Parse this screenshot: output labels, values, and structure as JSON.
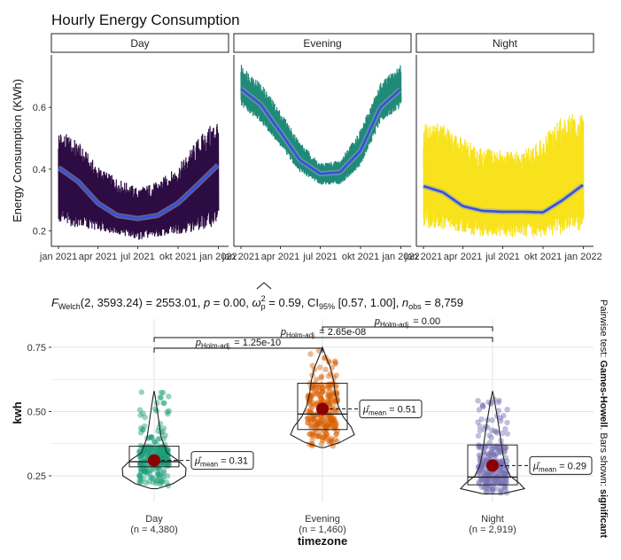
{
  "chart_data": [
    {
      "type": "line",
      "title": "Hourly Energy Consumption",
      "ylabel": "Energy Consumption (KWh)",
      "xlabel": "",
      "ylim": [
        0.15,
        0.77
      ],
      "yticks": [
        0.2,
        0.4,
        0.6
      ],
      "ytick_labels": [
        "0.2",
        "0.4",
        "0.6"
      ],
      "xlim": [
        "2021-01-01",
        "2022-01-08"
      ],
      "xticks": [
        "2021-01-01",
        "2021-04-01",
        "2021-07-01",
        "2021-10-01",
        "2022-01-01"
      ],
      "xtick_labels": [
        "jan 2021",
        "apr 2021",
        "jul 2021",
        "okt 2021",
        "jan 2022"
      ],
      "grid": false,
      "facets": [
        {
          "label": "Day",
          "color": "#2d0b43",
          "smooth_color": "#3152e0",
          "smooth": {
            "x": [
              "2021-01-01",
              "2021-02-15",
              "2021-04-01",
              "2021-05-15",
              "2021-07-01",
              "2021-08-15",
              "2021-10-01",
              "2021-11-15",
              "2022-01-01"
            ],
            "y": [
              0.405,
              0.36,
              0.29,
              0.25,
              0.24,
              0.25,
              0.29,
              0.35,
              0.415
            ]
          },
          "band_upper": {
            "x": [
              "2021-01-01",
              "2021-02-15",
              "2021-04-01",
              "2021-05-15",
              "2021-07-01",
              "2021-08-15",
              "2021-10-01",
              "2021-11-15",
              "2022-01-01"
            ],
            "y": [
              0.53,
              0.49,
              0.41,
              0.37,
              0.34,
              0.36,
              0.41,
              0.5,
              0.57
            ]
          },
          "band_lower": {
            "x": [
              "2021-01-01",
              "2021-02-15",
              "2021-04-01",
              "2021-05-15",
              "2021-07-01",
              "2021-08-15",
              "2021-10-01",
              "2021-11-15",
              "2022-01-01"
            ],
            "y": [
              0.22,
              0.21,
              0.2,
              0.19,
              0.17,
              0.18,
              0.19,
              0.2,
              0.22
            ]
          }
        },
        {
          "label": "Evening",
          "color": "#1f8a78",
          "smooth_color": "#3152e0",
          "smooth": {
            "x": [
              "2021-01-01",
              "2021-02-15",
              "2021-04-01",
              "2021-05-15",
              "2021-07-01",
              "2021-08-15",
              "2021-10-01",
              "2021-11-15",
              "2022-01-01"
            ],
            "y": [
              0.66,
              0.61,
              0.52,
              0.43,
              0.385,
              0.39,
              0.46,
              0.6,
              0.66
            ]
          },
          "band_upper": {
            "x": [
              "2021-01-01",
              "2021-02-15",
              "2021-04-01",
              "2021-05-15",
              "2021-07-01",
              "2021-08-15",
              "2021-10-01",
              "2021-11-15",
              "2022-01-01"
            ],
            "y": [
              0.74,
              0.68,
              0.59,
              0.49,
              0.42,
              0.43,
              0.53,
              0.68,
              0.74
            ]
          },
          "band_lower": {
            "x": [
              "2021-01-01",
              "2021-02-15",
              "2021-04-01",
              "2021-05-15",
              "2021-07-01",
              "2021-08-15",
              "2021-10-01",
              "2021-11-15",
              "2022-01-01"
            ],
            "y": [
              0.6,
              0.55,
              0.47,
              0.39,
              0.35,
              0.35,
              0.41,
              0.55,
              0.6
            ]
          }
        },
        {
          "label": "Night",
          "color": "#f7e21c",
          "smooth_color": "#3152e0",
          "smooth": {
            "x": [
              "2021-01-01",
              "2021-02-15",
              "2021-04-01",
              "2021-05-15",
              "2021-07-01",
              "2021-08-15",
              "2021-10-01",
              "2021-11-15",
              "2022-01-01"
            ],
            "y": [
              0.345,
              0.325,
              0.28,
              0.265,
              0.262,
              0.262,
              0.26,
              0.3,
              0.35
            ]
          },
          "band_upper": {
            "x": [
              "2021-01-01",
              "2021-02-15",
              "2021-04-01",
              "2021-05-15",
              "2021-07-01",
              "2021-08-15",
              "2021-10-01",
              "2021-11-15",
              "2022-01-01"
            ],
            "y": [
              0.55,
              0.55,
              0.5,
              0.47,
              0.46,
              0.46,
              0.5,
              0.58,
              0.58
            ]
          },
          "band_lower": {
            "x": [
              "2021-01-01",
              "2021-02-15",
              "2021-04-01",
              "2021-05-15",
              "2021-07-01",
              "2021-08-15",
              "2021-10-01",
              "2021-11-15",
              "2022-01-01"
            ],
            "y": [
              0.21,
              0.2,
              0.19,
              0.18,
              0.18,
              0.18,
              0.18,
              0.19,
              0.2
            ]
          }
        }
      ]
    },
    {
      "type": "violin",
      "subtitle_parts": {
        "stat": "F",
        "stat_sub": "Welch",
        "args": "(2, 3593.24) = 2553.01, ",
        "p_label": "p",
        "p_value": " = 0.00, ",
        "effect": "ω",
        "effect_sup": "2",
        "effect_sub": "p",
        "effect_value": " = 0.59, CI",
        "ci_sub": "95%",
        "ci_value": " [0.57, 1.00], ",
        "n_label": "n",
        "n_sub": "obs",
        "n_value": " = 8,759"
      },
      "xlabel": "timezone",
      "ylabel": "kwh",
      "ylim": [
        0.15,
        0.86
      ],
      "yticks": [
        0.25,
        0.5,
        0.75
      ],
      "ytick_labels": [
        "0.25",
        "0.50",
        "0.75"
      ],
      "caption": {
        "prefix": "Pairwise test: ",
        "test": "Games-Howell",
        "middle": ". Bars shown: ",
        "shown": "significant"
      },
      "groups": [
        {
          "label": "Day",
          "n_label": "(n = 4,380)",
          "mean": 0.31,
          "mean_label": "= 0.31",
          "q1": 0.285,
          "median": 0.305,
          "q3": 0.365,
          "min": 0.2,
          "max": 0.58,
          "color": "#1b9e77",
          "violin": {
            "y": [
              0.2,
              0.22,
              0.25,
              0.28,
              0.31,
              0.34,
              0.4,
              0.46,
              0.52,
              0.56,
              0.58
            ],
            "density": [
              0.1,
              0.6,
              0.98,
              1.0,
              0.75,
              0.4,
              0.22,
              0.15,
              0.08,
              0.03,
              0.0
            ]
          }
        },
        {
          "label": "Evening",
          "n_label": "(n = 1,460)",
          "mean": 0.51,
          "mean_label": "= 0.51",
          "q1": 0.43,
          "median": 0.49,
          "q3": 0.61,
          "min": 0.36,
          "max": 0.75,
          "color": "#d95f02",
          "violin": {
            "y": [
              0.36,
              0.38,
              0.41,
              0.44,
              0.48,
              0.52,
              0.57,
              0.62,
              0.67,
              0.71,
              0.75
            ],
            "density": [
              0.05,
              0.55,
              1.0,
              0.9,
              0.65,
              0.5,
              0.4,
              0.35,
              0.25,
              0.12,
              0.0
            ]
          }
        },
        {
          "label": "Night",
          "n_label": "(n = 2,919)",
          "mean": 0.29,
          "mean_label": "= 0.29",
          "q1": 0.215,
          "median": 0.245,
          "q3": 0.37,
          "min": 0.18,
          "max": 0.58,
          "color": "#7570b3",
          "violin": {
            "y": [
              0.18,
              0.2,
              0.22,
              0.25,
              0.29,
              0.33,
              0.38,
              0.44,
              0.5,
              0.55,
              0.58
            ],
            "density": [
              0.3,
              1.0,
              0.85,
              0.55,
              0.4,
              0.33,
              0.27,
              0.2,
              0.12,
              0.05,
              0.0
            ]
          }
        }
      ],
      "pairwise": [
        {
          "from": "Day",
          "to": "Evening",
          "label_p": "p",
          "label_sub": "Holm-adj.",
          "label_value": " = 1.25e-10"
        },
        {
          "from": "Day",
          "to": "Night",
          "label_p": "p",
          "label_sub": "Holm-adj.",
          "label_value": " = 2.65e-08"
        },
        {
          "from": "Evening",
          "to": "Night",
          "label_p": "p",
          "label_sub": "Holm-adj.",
          "label_value": " = 0.00"
        }
      ]
    }
  ]
}
